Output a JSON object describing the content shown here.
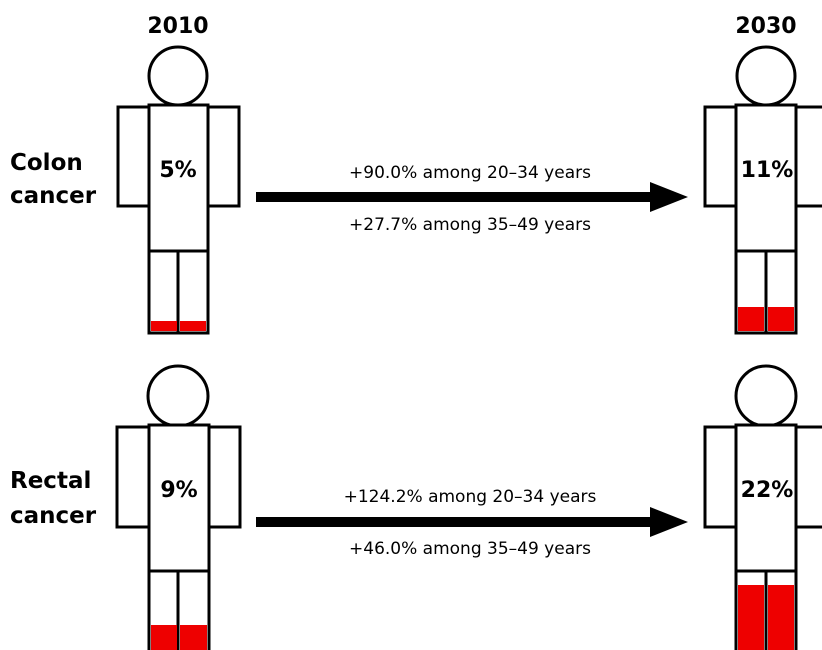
{
  "header": {
    "left_year": "2010",
    "right_year": "2030"
  },
  "colors": {
    "fill": "#ee0000",
    "outline": "#000000",
    "arrow": "#000000"
  },
  "rows": [
    {
      "label_line1": "Colon",
      "label_line2": "cancer",
      "left_percent": "5%",
      "left_fill_fraction": 0.05,
      "right_percent": "11%",
      "right_fill_fraction": 0.11,
      "change_line1": "+90.0% among 20–34 years",
      "change_line2": "+27.7% among 35–49 years"
    },
    {
      "label_line1": "Rectal",
      "label_line2": "cancer",
      "left_percent": "9%",
      "left_fill_fraction": 0.09,
      "right_percent": "22%",
      "right_fill_fraction": 0.22,
      "change_line1": "+124.2% among 20–34 years",
      "change_line2": "+46.0% among 35–49 years"
    }
  ]
}
